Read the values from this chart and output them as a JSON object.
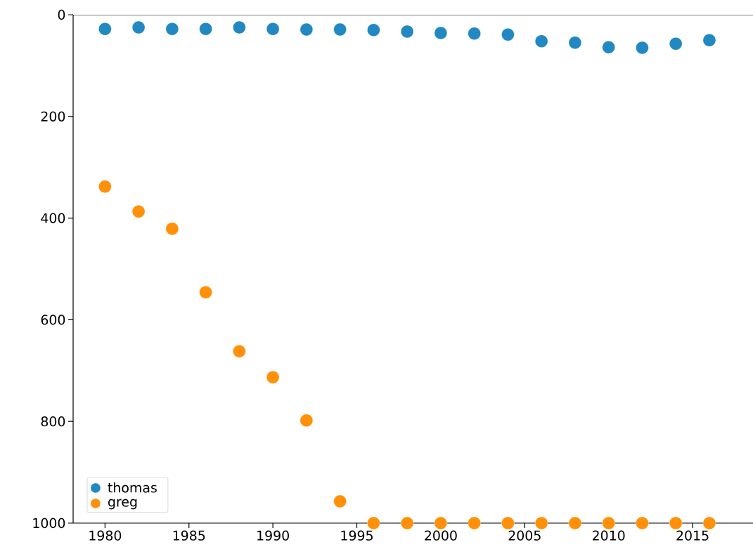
{
  "chart_data": {
    "type": "scatter",
    "x": [
      1980,
      1982,
      1984,
      1986,
      1988,
      1990,
      1992,
      1994,
      1996,
      1998,
      2000,
      2002,
      2004,
      2006,
      2008,
      2010,
      2012,
      2014,
      2016
    ],
    "series": [
      {
        "name": "thomas",
        "color": "#2188c1",
        "values": [
          28,
          25,
          28,
          28,
          25,
          28,
          29,
          29,
          30,
          33,
          36,
          37,
          39,
          52,
          55,
          64,
          65,
          57,
          50
        ]
      },
      {
        "name": "greg",
        "color": "#ff9008",
        "values": [
          338,
          387,
          421,
          546,
          662,
          713,
          798,
          957,
          1000,
          1000,
          1000,
          1000,
          1000,
          1000,
          1000,
          1000,
          1000,
          1000,
          1000
        ]
      }
    ],
    "xlim": [
      1978.1,
      2018.6
    ],
    "ylim": [
      1000,
      0
    ],
    "xticks": [
      1980,
      1985,
      1990,
      1995,
      2000,
      2005,
      2010,
      2015
    ],
    "yticks": [
      0,
      200,
      400,
      600,
      800,
      1000
    ],
    "legend": "bottom left",
    "marker": "circle",
    "grid": false
  }
}
